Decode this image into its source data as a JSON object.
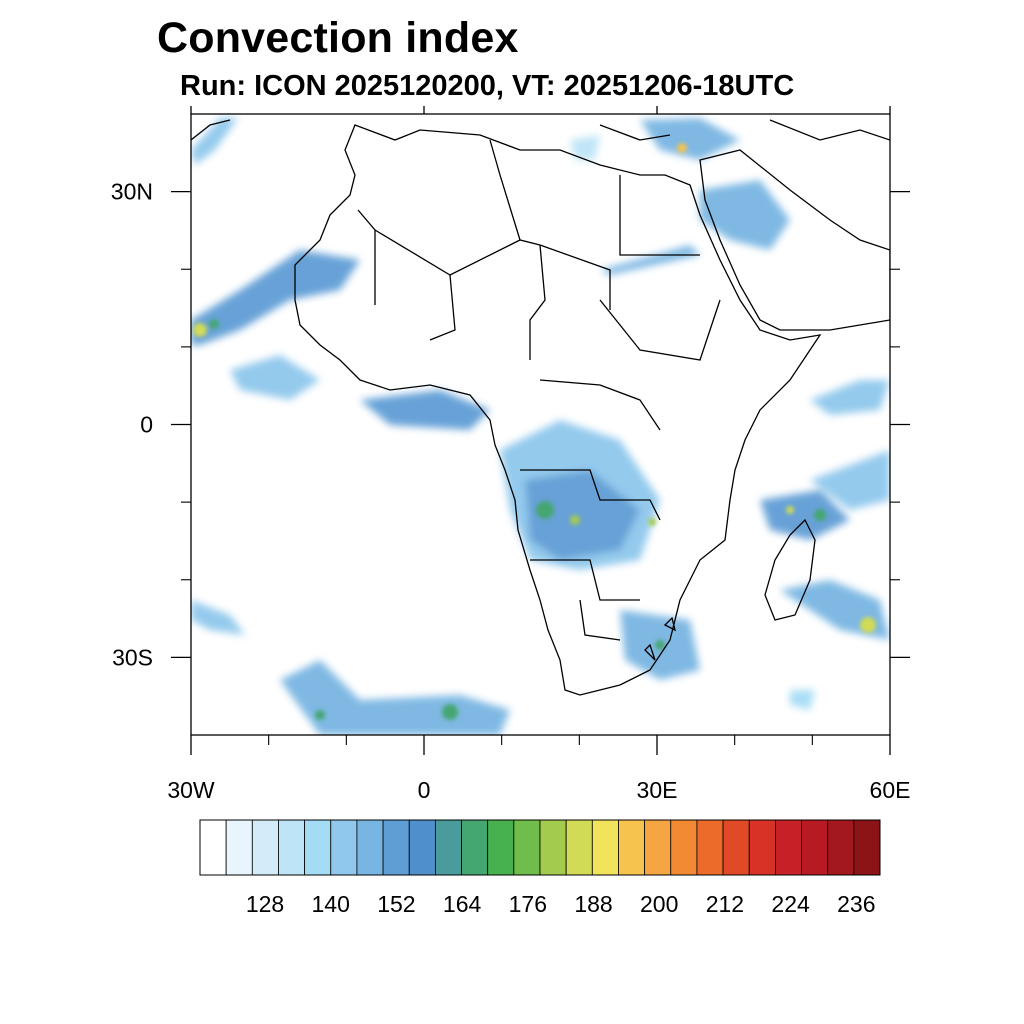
{
  "title": "Convection index",
  "subtitle": "Run: ICON 2025120200,  VT: 20251206-18UTC",
  "map": {
    "extent": {
      "lon": [
        -30,
        60
      ],
      "lat": [
        -40,
        40
      ]
    },
    "lon_ticks": [
      {
        "value": -30,
        "label": "30W"
      },
      {
        "value": 0,
        "label": "0"
      },
      {
        "value": 30,
        "label": "30E"
      },
      {
        "value": 60,
        "label": "60E"
      }
    ],
    "lat_ticks": [
      {
        "value": 30,
        "label": "30N"
      },
      {
        "value": 0,
        "label": "0"
      },
      {
        "value": -30,
        "label": "30S"
      }
    ],
    "minor_lon_ticks": [
      -20,
      -10,
      10,
      20,
      40,
      50
    ],
    "minor_lat_ticks": [
      20,
      10,
      -10,
      -20
    ]
  },
  "colorbar": {
    "colors": [
      "#ffffff",
      "#e8f5fc",
      "#d2ecf9",
      "#bde4f7",
      "#a5dcf5",
      "#8fc8ec",
      "#78b5e2",
      "#5f9dd5",
      "#4f8fcb",
      "#4a9b9b",
      "#44a671",
      "#47b04f",
      "#6fbd4a",
      "#a3cc4e",
      "#d2db55",
      "#f2e35c",
      "#f5c34e",
      "#f5a541",
      "#f28a34",
      "#ec6b2b",
      "#e14a27",
      "#d83226",
      "#c82027",
      "#b81a24",
      "#a3181f",
      "#8c1416"
    ],
    "labels": [
      "128",
      "140",
      "152",
      "164",
      "176",
      "188",
      "200",
      "212",
      "224",
      "236"
    ]
  }
}
